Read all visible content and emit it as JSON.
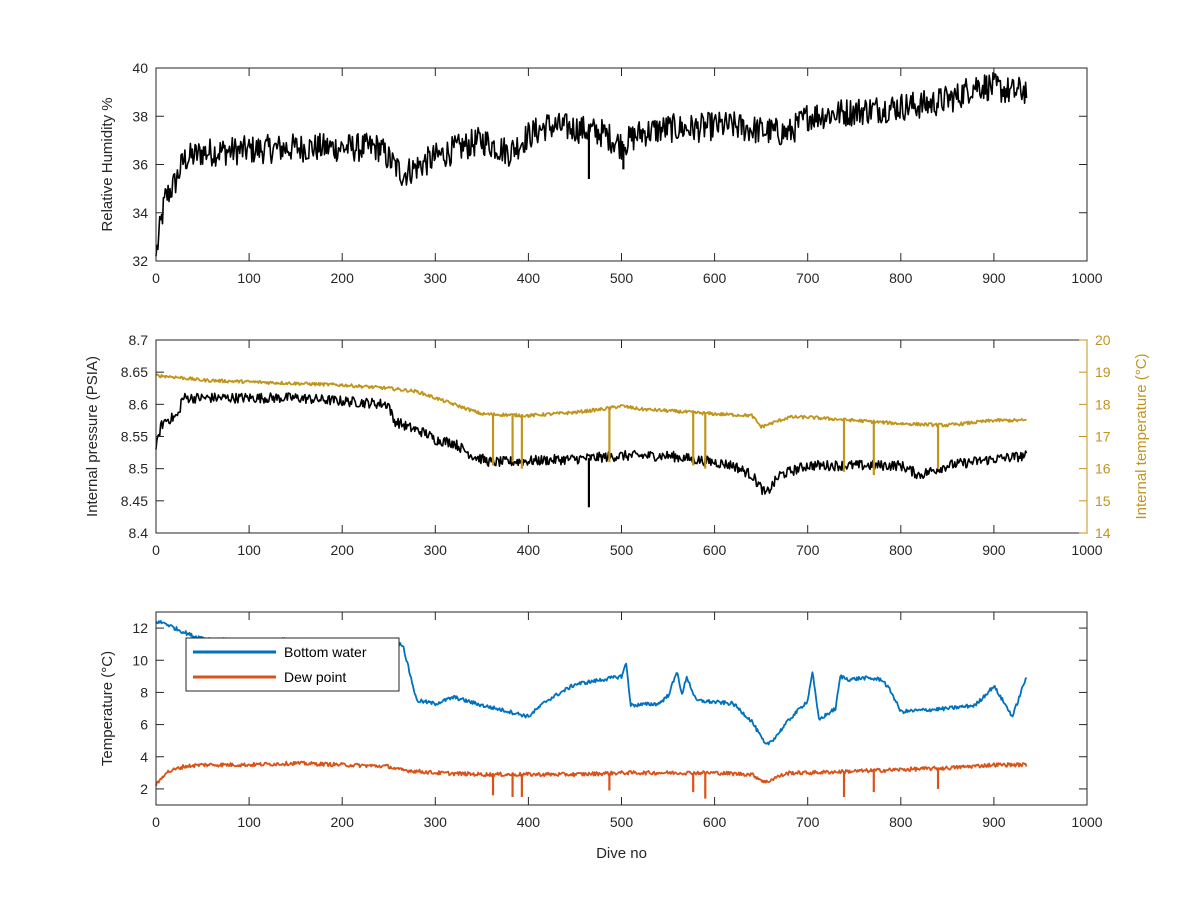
{
  "colors": {
    "background": "#ffffff",
    "axes": "#262626",
    "humidity": "#000000",
    "pressure": "#000000",
    "internal_temperature": "#C0951E",
    "bottom_water": "#0072BD",
    "dew_point": "#D95319"
  },
  "chart_data": [
    {
      "type": "line",
      "title": "",
      "xlabel": "",
      "ylabel": "Relative Humidity %",
      "xlim": [
        0,
        1000
      ],
      "ylim": [
        32,
        40
      ],
      "xticks": [
        "0",
        "100",
        "200",
        "300",
        "400",
        "500",
        "600",
        "700",
        "800",
        "900",
        "1000"
      ],
      "yticks": [
        "32",
        "34",
        "36",
        "38",
        "40"
      ],
      "grid": false,
      "legend": "none",
      "series": [
        {
          "color": "#000000",
          "noise": 0.6,
          "x": [
            0,
            5,
            10,
            20,
            30,
            50,
            100,
            150,
            200,
            240,
            255,
            265,
            280,
            300,
            320,
            350,
            380,
            400,
            420,
            450,
            480,
            500,
            520,
            550,
            580,
            600,
            620,
            650,
            680,
            700,
            750,
            800,
            830,
            860,
            880,
            900,
            920,
            935
          ],
          "y": [
            32.2,
            33.5,
            34.6,
            35.2,
            36.2,
            36.5,
            36.6,
            36.7,
            36.7,
            36.7,
            36.0,
            35.6,
            35.9,
            36.3,
            36.6,
            37.0,
            36.5,
            37.2,
            37.6,
            37.5,
            37.3,
            36.8,
            37.3,
            37.5,
            37.5,
            37.6,
            37.6,
            37.4,
            37.3,
            38.0,
            38.2,
            38.4,
            38.5,
            38.8,
            39.3,
            39.2,
            39.0,
            39.1
          ]
        }
      ],
      "spikes": [
        {
          "series": 0,
          "x": 465,
          "y": 35.4
        },
        {
          "series": 0,
          "x": 502,
          "y": 35.8
        }
      ]
    },
    {
      "type": "line",
      "title": "",
      "xlabel": "",
      "ylabel": "Internal pressure (PSIA)",
      "ylabel_right": "Internal temperature (°C)",
      "xlim": [
        0,
        1000
      ],
      "ylim": [
        8.4,
        8.7
      ],
      "ylim_right": [
        14,
        20
      ],
      "xticks": [
        "0",
        "100",
        "200",
        "300",
        "400",
        "500",
        "600",
        "700",
        "800",
        "900",
        "1000"
      ],
      "yticks": [
        "8.4",
        "8.45",
        "8.5",
        "8.55",
        "8.6",
        "8.65",
        "8.7"
      ],
      "yticks_right": [
        "14",
        "15",
        "16",
        "17",
        "18",
        "19",
        "20"
      ],
      "grid": false,
      "legend": "none",
      "series": [
        {
          "color": "#000000",
          "axis": "left",
          "noise": 0.008,
          "x": [
            0,
            5,
            10,
            20,
            25,
            27,
            30,
            50,
            100,
            150,
            200,
            250,
            255,
            270,
            290,
            300,
            320,
            340,
            360,
            400,
            450,
            500,
            550,
            600,
            620,
            640,
            655,
            670,
            700,
            750,
            800,
            820,
            850,
            900,
            935
          ],
          "y": [
            8.53,
            8.565,
            8.575,
            8.58,
            8.585,
            8.605,
            8.61,
            8.61,
            8.61,
            8.61,
            8.605,
            8.6,
            8.575,
            8.565,
            8.555,
            8.545,
            8.54,
            8.52,
            8.51,
            8.512,
            8.515,
            8.52,
            8.52,
            8.51,
            8.505,
            8.49,
            8.46,
            8.49,
            8.505,
            8.505,
            8.505,
            8.49,
            8.505,
            8.515,
            8.52
          ]
        },
        {
          "color": "#C0951E",
          "axis": "right",
          "noise": 0.05,
          "x": [
            0,
            20,
            50,
            100,
            150,
            200,
            250,
            280,
            300,
            320,
            340,
            350,
            400,
            450,
            480,
            500,
            520,
            550,
            600,
            640,
            650,
            660,
            680,
            700,
            750,
            800,
            850,
            900,
            935
          ],
          "y": [
            18.9,
            18.85,
            18.75,
            18.7,
            18.65,
            18.6,
            18.5,
            18.4,
            18.2,
            18.0,
            17.8,
            17.7,
            17.65,
            17.75,
            17.85,
            17.95,
            17.85,
            17.8,
            17.7,
            17.65,
            17.3,
            17.4,
            17.6,
            17.6,
            17.5,
            17.4,
            17.35,
            17.5,
            17.5
          ]
        }
      ],
      "spikes": [
        {
          "series": 0,
          "x": 465,
          "y": 8.44
        },
        {
          "series": 1,
          "x": 362,
          "y": 16.1
        },
        {
          "series": 1,
          "x": 383,
          "y": 16.2
        },
        {
          "series": 1,
          "x": 393,
          "y": 16.0
        },
        {
          "series": 1,
          "x": 487,
          "y": 16.2
        },
        {
          "series": 1,
          "x": 577,
          "y": 16.1
        },
        {
          "series": 1,
          "x": 590,
          "y": 16.0
        },
        {
          "series": 1,
          "x": 739,
          "y": 15.9
        },
        {
          "series": 1,
          "x": 771,
          "y": 15.8
        },
        {
          "series": 1,
          "x": 840,
          "y": 16.0
        }
      ]
    },
    {
      "type": "line",
      "title": "",
      "xlabel": "Dive no",
      "ylabel": "Temperature (°C)",
      "xlim": [
        0,
        1000
      ],
      "ylim": [
        1,
        13
      ],
      "xticks": [
        "0",
        "100",
        "200",
        "300",
        "400",
        "500",
        "600",
        "700",
        "800",
        "900",
        "1000"
      ],
      "yticks": [
        "2",
        "4",
        "6",
        "8",
        "10",
        "12"
      ],
      "grid": false,
      "legend": "top-left",
      "series": [
        {
          "name": "Bottom water",
          "color": "#0072BD",
          "noise": 0.12,
          "x": [
            0,
            10,
            20,
            40,
            60,
            100,
            150,
            200,
            250,
            265,
            270,
            280,
            300,
            320,
            350,
            380,
            400,
            420,
            450,
            480,
            500,
            505,
            510,
            540,
            550,
            560,
            565,
            570,
            580,
            600,
            620,
            640,
            655,
            665,
            680,
            700,
            705,
            712,
            730,
            735,
            745,
            760,
            780,
            790,
            800,
            850,
            880,
            900,
            920,
            935
          ],
          "y": [
            12.4,
            12.3,
            12.0,
            11.5,
            11.3,
            11.2,
            11.3,
            11.1,
            11.0,
            11.0,
            9.8,
            7.5,
            7.3,
            7.7,
            7.2,
            6.8,
            6.5,
            7.5,
            8.5,
            8.8,
            9.0,
            9.8,
            7.2,
            7.3,
            7.8,
            9.3,
            7.8,
            9.0,
            7.5,
            7.4,
            7.3,
            6.2,
            4.7,
            5.2,
            6.3,
            7.5,
            9.3,
            6.3,
            7.0,
            9.0,
            8.8,
            8.9,
            8.8,
            8.0,
            6.8,
            7.0,
            7.2,
            8.4,
            6.5,
            9.0
          ]
        },
        {
          "name": "Dew point",
          "color": "#D95319",
          "noise": 0.12,
          "x": [
            0,
            5,
            10,
            20,
            30,
            50,
            100,
            150,
            200,
            250,
            260,
            280,
            300,
            350,
            400,
            450,
            500,
            550,
            600,
            640,
            655,
            665,
            680,
            700,
            750,
            800,
            850,
            900,
            935
          ],
          "y": [
            2.2,
            2.6,
            3.0,
            3.2,
            3.4,
            3.5,
            3.5,
            3.6,
            3.5,
            3.4,
            3.2,
            3.1,
            3.0,
            2.9,
            2.9,
            2.9,
            3.0,
            3.0,
            3.0,
            2.9,
            2.4,
            2.7,
            3.0,
            3.0,
            3.1,
            3.2,
            3.3,
            3.5,
            3.5
          ]
        }
      ],
      "spikes": [
        {
          "series": 1,
          "x": 362,
          "y": 1.6
        },
        {
          "series": 1,
          "x": 383,
          "y": 1.5
        },
        {
          "series": 1,
          "x": 393,
          "y": 1.5
        },
        {
          "series": 1,
          "x": 487,
          "y": 1.9
        },
        {
          "series": 1,
          "x": 577,
          "y": 1.8
        },
        {
          "series": 1,
          "x": 590,
          "y": 1.4
        },
        {
          "series": 1,
          "x": 739,
          "y": 1.5
        },
        {
          "series": 1,
          "x": 771,
          "y": 1.8
        },
        {
          "series": 1,
          "x": 840,
          "y": 2.0
        }
      ]
    }
  ]
}
